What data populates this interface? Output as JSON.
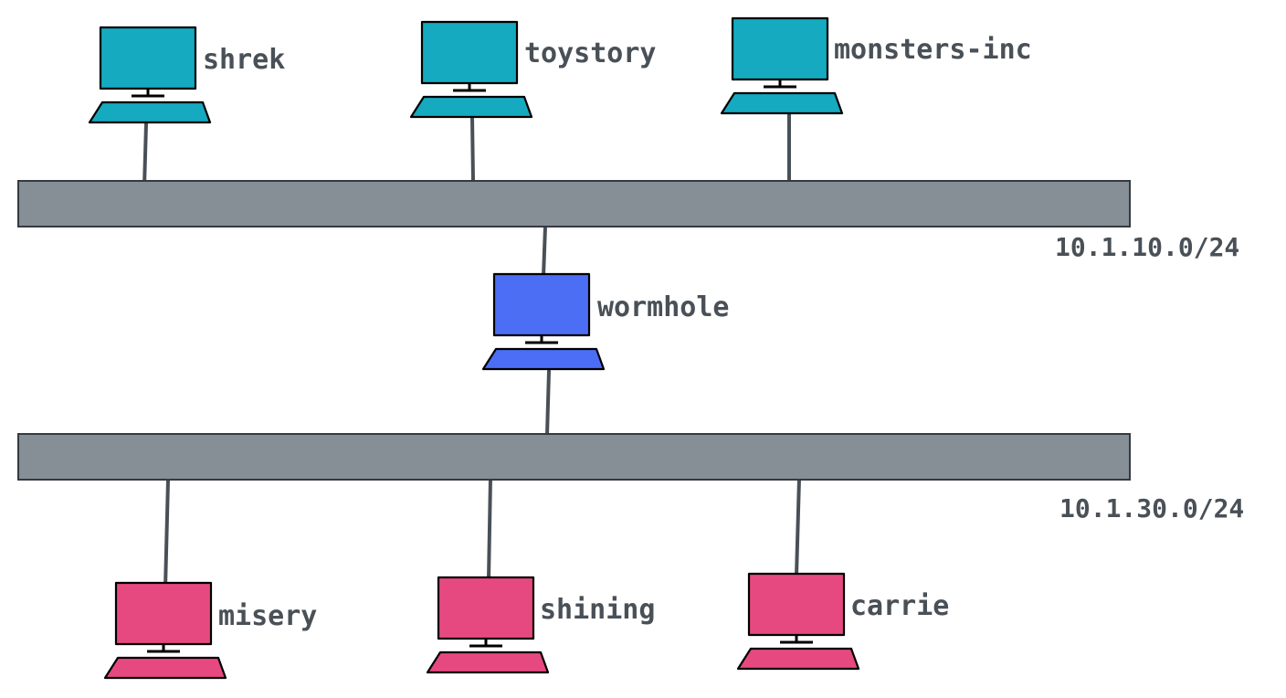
{
  "colors": {
    "top_hosts": "#15aabf",
    "gateway": "#4c6ef5",
    "bottom_hosts": "#e64980",
    "bus": "#868e96"
  },
  "networks": {
    "top": {
      "cidr": "10.1.10.0/24"
    },
    "bottom": {
      "cidr": "10.1.30.0/24"
    }
  },
  "hosts": {
    "shrek": {
      "name": "shrek",
      "icon": "computer-icon"
    },
    "toystory": {
      "name": "toystory",
      "icon": "computer-icon"
    },
    "monsters_inc": {
      "name": "monsters-inc",
      "icon": "computer-icon"
    },
    "wormhole": {
      "name": "wormhole",
      "icon": "computer-icon"
    },
    "misery": {
      "name": "misery",
      "icon": "computer-icon"
    },
    "shining": {
      "name": "shining",
      "icon": "computer-icon"
    },
    "carrie": {
      "name": "carrie",
      "icon": "computer-icon"
    }
  }
}
